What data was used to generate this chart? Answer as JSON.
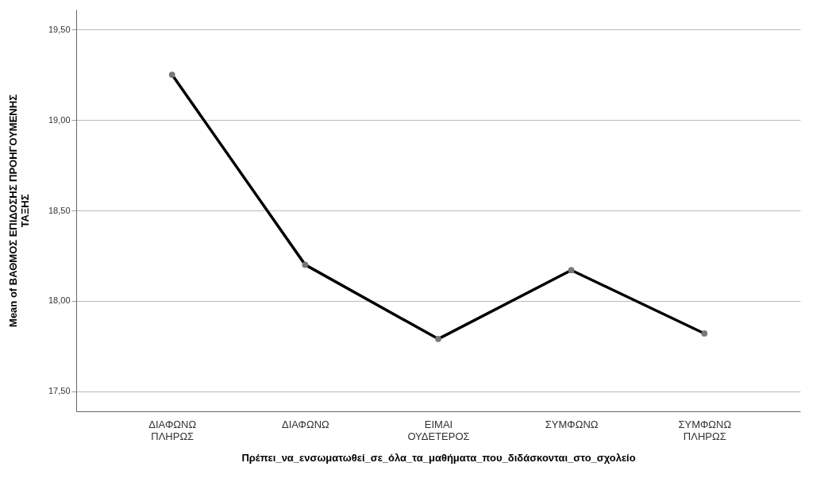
{
  "chart_data": {
    "type": "line",
    "xlabel": "Πρέπει_να_ενσωματωθεί_σε_όλα_τα_μαθήματα_που_διδάσκονται_στο_σχολείο",
    "ylabel": "Mean of ΒΑΘΜΟΣ ΕΠΙΔΟΣΗΣ ΠΡΟΗΓΟΥΜΕΝΗΣ ΤΑΞΗΣ",
    "categories": [
      "ΔΙΑΦΩΝΩ ΠΛΗΡΩΣ",
      "ΔΙΑΦΩΝΩ",
      "ΕΙΜΑΙ ΟΥΔΕΤΕΡΟΣ",
      "ΣΥΜΦΩΝΩ",
      "ΣΥΜΦΩΝΩ ΠΛΗΡΩΣ"
    ],
    "series": [
      {
        "color": "#000000",
        "values": [
          19.25,
          18.2,
          17.79,
          18.17,
          17.82
        ]
      }
    ],
    "ylim": [
      17.39,
      19.61
    ],
    "yticks": [
      {
        "value": 17.5,
        "label": "17,50"
      },
      {
        "value": 18,
        "label": "18,00"
      },
      {
        "value": 18.5,
        "label": "18,50"
      },
      {
        "value": 19,
        "label": "19,00"
      },
      {
        "value": 19.5,
        "label": "19,50"
      }
    ],
    "grid": "y",
    "marker": "circle",
    "line_style": "solid",
    "legend": false
  }
}
